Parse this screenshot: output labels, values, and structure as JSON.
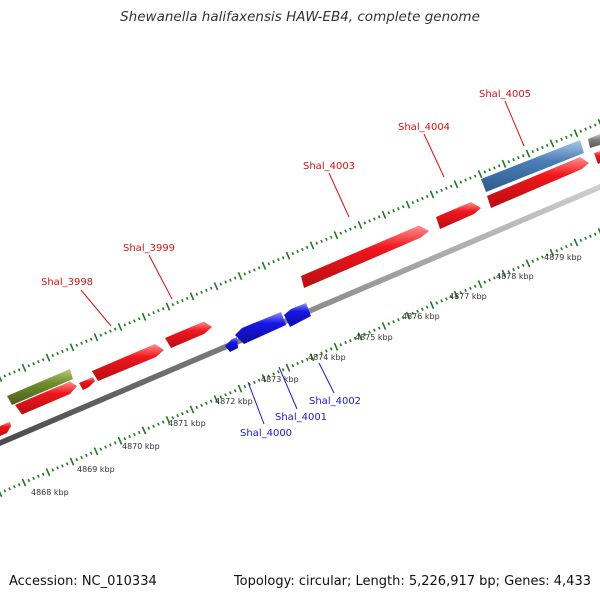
{
  "title": "Shewanella halifaxensis HAW-EB4, complete genome",
  "footer": {
    "accession": "Accession: NC_010334",
    "summary": "Topology: circular; Length: 5,226,917 bp; Genes: 4,433"
  },
  "colors": {
    "forward_gene": "#e8141b",
    "reverse_gene": "#1515d8",
    "rna_gene": "#6f8c2c",
    "steelblue_gene": "#4b7fb8",
    "gray_gene": "#808080",
    "backbone": "#8a8a8a",
    "tick": "#1f7a1f",
    "forward_label": "#d41417",
    "reverse_label": "#1a1acc"
  },
  "scale_labels": [
    "4868 kbp",
    "4869 kbp",
    "4870 kbp",
    "4871 kbp",
    "4872 kbp",
    "4873 kbp",
    "4874 kbp",
    "4875 kbp",
    "4876 kbp",
    "4877 kbp",
    "4878 kbp",
    "4879 kbp"
  ],
  "gene_labels": {
    "forward": [
      "Shal_3998",
      "Shal_3999",
      "Shal_4003",
      "Shal_4004",
      "Shal_4005"
    ],
    "reverse": [
      "Shal_4000",
      "Shal_4001",
      "Shal_4002"
    ]
  }
}
